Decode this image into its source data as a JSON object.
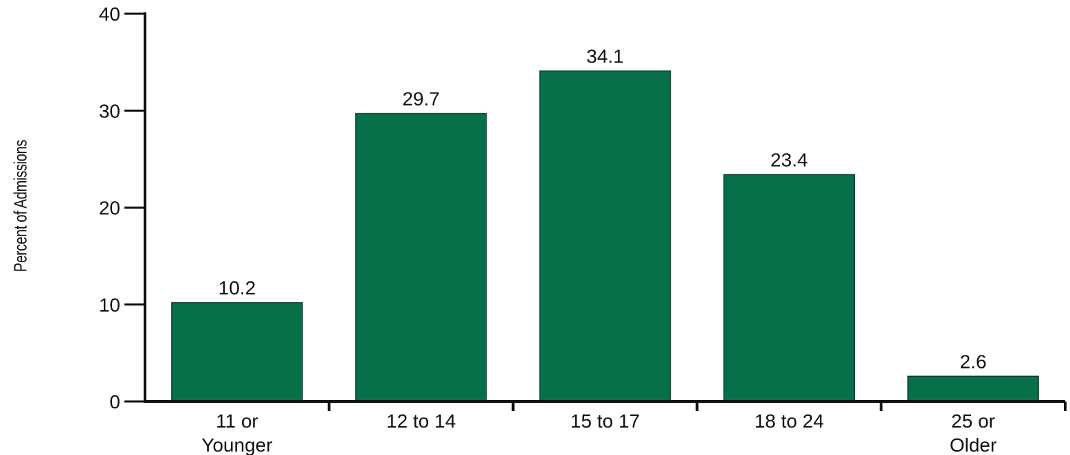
{
  "chart_data": {
    "type": "bar",
    "categories": [
      [
        "11 or",
        "Younger"
      ],
      [
        "12 to 14"
      ],
      [
        "15 to 17"
      ],
      [
        "18 to 24"
      ],
      [
        "25 or",
        "Older"
      ]
    ],
    "values": [
      10.2,
      29.7,
      34.1,
      23.4,
      2.6
    ],
    "data_labels": [
      "10.2",
      "29.7",
      "34.1",
      "23.4",
      "2.6"
    ],
    "title": "",
    "xlabel": "",
    "ylabel": "Percent of Admissions",
    "ylim": [
      0,
      40
    ],
    "yticks": [
      0,
      10,
      20,
      30,
      40
    ],
    "grid": false,
    "legend": "none",
    "bar_color": "#07704a",
    "axis_color": "#111111"
  }
}
